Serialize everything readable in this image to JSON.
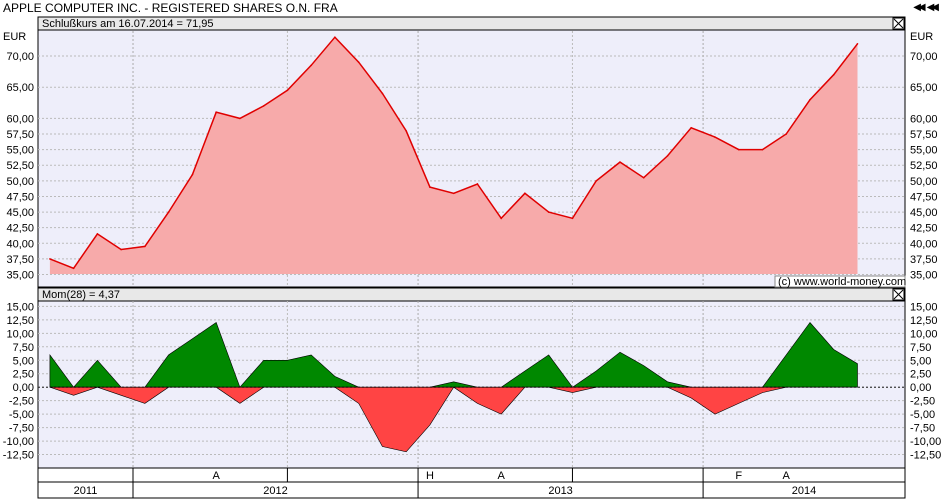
{
  "window": {
    "title": "APPLE COMPUTER INC. - REGISTERED SHARES O.N. FRA",
    "nav_icons": [
      "first-page-icon",
      "prev-page-icon"
    ]
  },
  "price_panel": {
    "header": "Schlußkurs am 16.07.2014 = 71,95",
    "unit_left": "EUR",
    "unit_right": "EUR",
    "copyright": "(c) www.world-money.com",
    "fill_color": "#f7aaaa",
    "line_color": "#e00000",
    "bg_color": "#eeeefa"
  },
  "momentum_panel": {
    "header": "Mom(28) = 4,37",
    "positive_color": "#008800",
    "negative_color": "#ff4444"
  },
  "axis": {
    "price_ticks": [
      "70,00",
      "65,00",
      "60,00",
      "57,50",
      "55,00",
      "52,50",
      "50,00",
      "47,50",
      "45,00",
      "42,50",
      "40,00",
      "37,50",
      "35,00"
    ],
    "mom_ticks": [
      "15,00",
      "12,50",
      "10,00",
      "7,50",
      "5,00",
      "2,50",
      "0,00",
      "-2,50",
      "-5,00",
      "-7,50",
      "-10,00",
      "-12,50"
    ],
    "month_labels": [
      {
        "label": "A",
        "x": "2012-04"
      },
      {
        "label": "H",
        "x": "2013-01"
      },
      {
        "label": "A",
        "x": "2013-04"
      },
      {
        "label": "F",
        "x": "2014-02"
      },
      {
        "label": "A",
        "x": "2014-04"
      }
    ],
    "years": [
      "2011",
      "2012",
      "2013",
      "2014"
    ]
  },
  "chart_data": [
    {
      "type": "area",
      "ylabel": "EUR",
      "ylim": [
        33,
        74
      ],
      "x_range": [
        "2011-09",
        "2014-09"
      ],
      "grid": true,
      "x": [
        "2011-09",
        "2011-10",
        "2011-11",
        "2011-12",
        "2012-01",
        "2012-02",
        "2012-03",
        "2012-04",
        "2012-05",
        "2012-06",
        "2012-07",
        "2012-08",
        "2012-09",
        "2012-10",
        "2012-11",
        "2012-12",
        "2013-01",
        "2013-02",
        "2013-03",
        "2013-04",
        "2013-05",
        "2013-06",
        "2013-07",
        "2013-08",
        "2013-09",
        "2013-10",
        "2013-11",
        "2013-12",
        "2014-01",
        "2014-02",
        "2014-03",
        "2014-04",
        "2014-05",
        "2014-06",
        "2014-07"
      ],
      "series": [
        {
          "values": [
            37.5,
            36.0,
            41.5,
            39.0,
            39.5,
            45.0,
            51.0,
            61.0,
            60.0,
            62.0,
            64.5,
            68.5,
            73.0,
            69.0,
            64.0,
            58.0,
            49.0,
            48.0,
            49.5,
            44.0,
            48.0,
            45.0,
            44.0,
            50.0,
            53.0,
            50.5,
            54.0,
            58.5,
            57.0,
            55.0,
            55.0,
            57.5,
            63.0,
            67.0,
            71.95
          ]
        }
      ]
    },
    {
      "type": "area",
      "ylabel": "Mom(28)",
      "ylim": [
        -15,
        16
      ],
      "x": [
        "2011-09",
        "2011-10",
        "2011-11",
        "2011-12",
        "2012-01",
        "2012-02",
        "2012-03",
        "2012-04",
        "2012-05",
        "2012-06",
        "2012-07",
        "2012-08",
        "2012-09",
        "2012-10",
        "2012-11",
        "2012-12",
        "2013-01",
        "2013-02",
        "2013-03",
        "2013-04",
        "2013-05",
        "2013-06",
        "2013-07",
        "2013-08",
        "2013-09",
        "2013-10",
        "2013-11",
        "2013-12",
        "2014-01",
        "2014-02",
        "2014-03",
        "2014-04",
        "2014-05",
        "2014-06",
        "2014-07"
      ],
      "series": [
        {
          "values": [
            6.0,
            -1.5,
            5.0,
            -1.5,
            -3.0,
            6.0,
            9.0,
            12.0,
            -3.0,
            5.0,
            5.0,
            6.0,
            2.0,
            -3.0,
            -11.0,
            -12.0,
            -7.0,
            1.0,
            -3.0,
            -5.0,
            3.0,
            6.0,
            -1.0,
            3.0,
            6.5,
            4.0,
            1.0,
            -2.0,
            -5.0,
            -3.0,
            -1.0,
            6.0,
            12.0,
            7.0,
            4.37
          ]
        }
      ]
    }
  ]
}
